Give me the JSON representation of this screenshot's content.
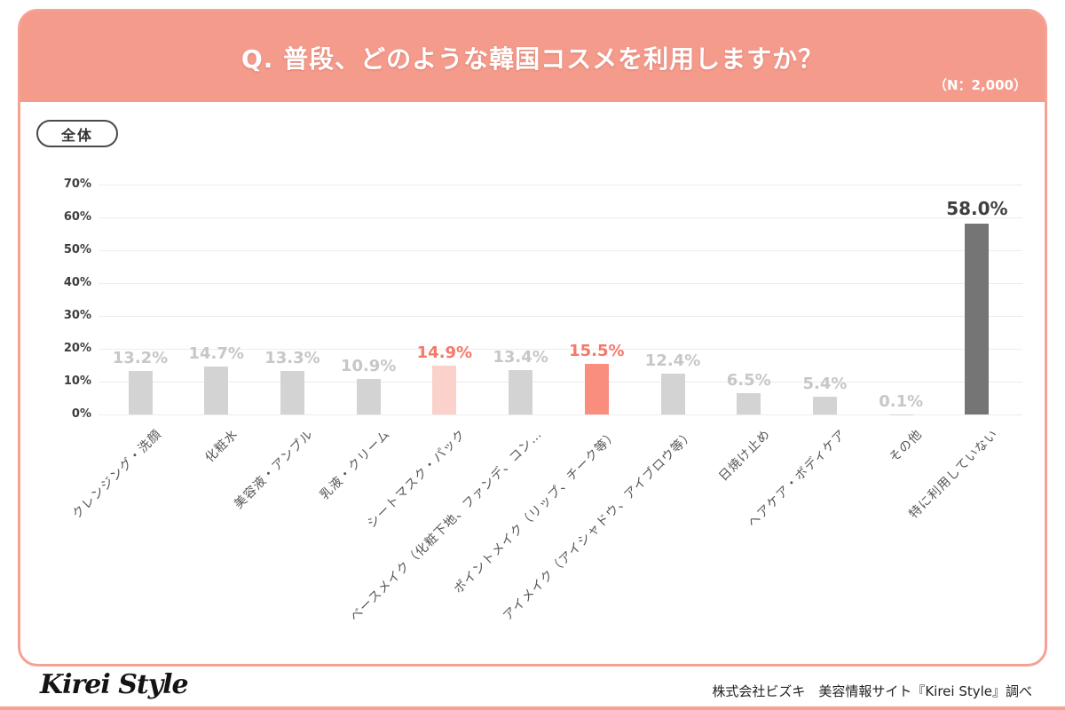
{
  "header": {
    "title": "Q. 普段、どのような韓国コスメを利用しますか？",
    "sample_note": "（N：2,000）"
  },
  "filter_badge": "全体",
  "chart_data": {
    "type": "bar",
    "title": "Q. 普段、どのような韓国コスメを利用しますか？",
    "categories": [
      "クレンジング・洗顔",
      "化粧水",
      "美容液・アンプル",
      "乳液・クリーム",
      "シートマスク・パック",
      "ベースメイク（化粧下地、ファンデ、コン…",
      "ポイントメイク（リップ、チーク等）",
      "アイメイク（アイシャドウ、アイブロウ等）",
      "日焼け止め",
      "ヘアケア・ボディケア",
      "その他",
      "特に利用していない"
    ],
    "values": [
      13.2,
      14.7,
      13.3,
      10.9,
      14.9,
      13.4,
      15.5,
      12.4,
      6.5,
      5.4,
      0.1,
      58.0
    ],
    "value_labels": [
      "13.2%",
      "14.7%",
      "13.3%",
      "10.9%",
      "14.9%",
      "13.4%",
      "15.5%",
      "12.4%",
      "6.5%",
      "5.4%",
      "0.1%",
      "58.0%"
    ],
    "bar_styles": [
      "default",
      "default",
      "default",
      "default",
      "light",
      "default",
      "strong",
      "default",
      "default",
      "default",
      "default",
      "dark"
    ],
    "xlabel": "",
    "ylabel": "",
    "ylim": [
      0,
      70
    ],
    "yticks": [
      "0%",
      "10%",
      "20%",
      "30%",
      "40%",
      "50%",
      "60%",
      "70%"
    ],
    "grid": true,
    "legend": "none"
  },
  "colors": {
    "header_bg": "#F59B8C",
    "panel_border": "#F4A294",
    "bar_default": "#D3D3D3",
    "bar_light": "#FBD2CB",
    "bar_strong": "#F98D7E",
    "bar_dark": "#757575",
    "label_default": "#C7C7C7",
    "label_light": "#F4796B",
    "label_strong": "#F4796B",
    "label_dark": "#404040"
  },
  "footer": {
    "logo": "Kirei Style",
    "credit": "株式会社ビズキ　美容情報サイト『Kirei Style』調べ"
  }
}
